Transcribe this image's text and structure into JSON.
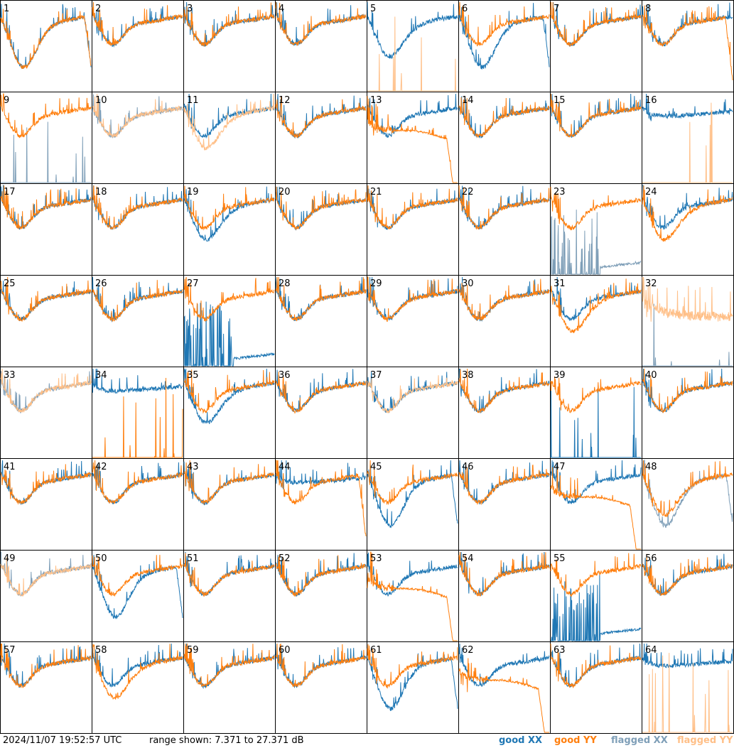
{
  "timestamp": "2024/11/07 19:52:57 UTC",
  "range_text": "range shown: 7.371 to 27.371 dB",
  "colors": {
    "good_xx": "#1f77b4",
    "good_yy": "#ff7f0e",
    "flagged_xx": "#7f9fb8",
    "flagged_yy": "#ffbf87"
  },
  "chart_data": {
    "type": "line",
    "grid": "8x8 small multiples",
    "ylim": [
      7.371,
      27.371
    ],
    "legend": [
      {
        "key": "good_xx",
        "label": "good XX"
      },
      {
        "key": "good_yy",
        "label": "good YY"
      },
      {
        "key": "flagged_xx",
        "label": "flagged XX"
      },
      {
        "key": "flagged_yy",
        "label": "flagged YY"
      }
    ],
    "panels": [
      {
        "label": "1",
        "xx": "good",
        "yy": "good",
        "xx_shape": "dip_deep",
        "yy_shape": "dip_deep"
      },
      {
        "label": "2",
        "xx": "good",
        "yy": "good",
        "xx_shape": "normal",
        "yy_shape": "normal"
      },
      {
        "label": "3",
        "xx": "good",
        "yy": "good",
        "xx_shape": "normal",
        "yy_shape": "normal"
      },
      {
        "label": "4",
        "xx": "good",
        "yy": "good",
        "xx_shape": "normal",
        "yy_shape": "normal"
      },
      {
        "label": "5",
        "xx": "good",
        "yy": "flagged",
        "xx_shape": "dip",
        "yy_shape": "spikes"
      },
      {
        "label": "6",
        "xx": "good",
        "yy": "good",
        "xx_shape": "dip_deep",
        "yy_shape": "normal"
      },
      {
        "label": "7",
        "xx": "good",
        "yy": "good",
        "xx_shape": "normal",
        "yy_shape": "normal"
      },
      {
        "label": "8",
        "xx": "good",
        "yy": "good",
        "xx_shape": "normal",
        "yy_shape": "dropoff"
      },
      {
        "label": "9",
        "xx": "flagged",
        "yy": "good",
        "xx_shape": "spikes",
        "yy_shape": "normal"
      },
      {
        "label": "10",
        "xx": "flagged",
        "yy": "flagged",
        "xx_shape": "normal",
        "yy_shape": "normal"
      },
      {
        "label": "11",
        "xx": "good",
        "yy": "flagged",
        "xx_shape": "normal",
        "yy_shape": "dip"
      },
      {
        "label": "12",
        "xx": "good",
        "yy": "good",
        "xx_shape": "normal",
        "yy_shape": "normal"
      },
      {
        "label": "13",
        "xx": "good",
        "yy": "good",
        "xx_shape": "normal",
        "yy_shape": "hump_drop"
      },
      {
        "label": "14",
        "xx": "good",
        "yy": "good",
        "xx_shape": "normal",
        "yy_shape": "normal"
      },
      {
        "label": "15",
        "xx": "good",
        "yy": "good",
        "xx_shape": "normal",
        "yy_shape": "normal"
      },
      {
        "label": "16",
        "xx": "good",
        "yy": "flagged",
        "xx_shape": "flatish",
        "yy_shape": "spikes"
      },
      {
        "label": "17",
        "xx": "good",
        "yy": "good",
        "xx_shape": "normal",
        "yy_shape": "normal"
      },
      {
        "label": "18",
        "xx": "good",
        "yy": "good",
        "xx_shape": "normal",
        "yy_shape": "normal"
      },
      {
        "label": "19",
        "xx": "good",
        "yy": "good",
        "xx_shape": "dip",
        "yy_shape": "normal"
      },
      {
        "label": "20",
        "xx": "good",
        "yy": "good",
        "xx_shape": "normal",
        "yy_shape": "normal"
      },
      {
        "label": "21",
        "xx": "good",
        "yy": "good",
        "xx_shape": "normal",
        "yy_shape": "normal"
      },
      {
        "label": "22",
        "xx": "good",
        "yy": "good",
        "xx_shape": "normal",
        "yy_shape": "normal"
      },
      {
        "label": "23",
        "xx": "flagged",
        "yy": "good",
        "xx_shape": "spikes_low",
        "yy_shape": "normal"
      },
      {
        "label": "24",
        "xx": "good",
        "yy": "good",
        "xx_shape": "normal",
        "yy_shape": "dip"
      },
      {
        "label": "25",
        "xx": "good",
        "yy": "good",
        "xx_shape": "normal",
        "yy_shape": "normal"
      },
      {
        "label": "26",
        "xx": "good",
        "yy": "good",
        "xx_shape": "normal",
        "yy_shape": "normal"
      },
      {
        "label": "27",
        "xx": "good",
        "yy": "good",
        "xx_shape": "spikes_low",
        "yy_shape": "normal"
      },
      {
        "label": "28",
        "xx": "good",
        "yy": "good",
        "xx_shape": "normal",
        "yy_shape": "normal"
      },
      {
        "label": "29",
        "xx": "good",
        "yy": "good",
        "xx_shape": "normal",
        "yy_shape": "normal"
      },
      {
        "label": "30",
        "xx": "good",
        "yy": "good",
        "xx_shape": "normal",
        "yy_shape": "normal"
      },
      {
        "label": "31",
        "xx": "good",
        "yy": "good",
        "xx_shape": "normal",
        "yy_shape": "dip"
      },
      {
        "label": "32",
        "xx": "flagged",
        "yy": "flagged",
        "xx_shape": "spikes",
        "yy_shape": "noisy"
      },
      {
        "label": "33",
        "xx": "flagged",
        "yy": "flagged",
        "xx_shape": "normal",
        "yy_shape": "normal"
      },
      {
        "label": "34",
        "xx": "good",
        "yy": "good",
        "xx_shape": "flatish",
        "yy_shape": "spikes"
      },
      {
        "label": "35",
        "xx": "good",
        "yy": "good",
        "xx_shape": "dip",
        "yy_shape": "normal"
      },
      {
        "label": "36",
        "xx": "good",
        "yy": "good",
        "xx_shape": "normal",
        "yy_shape": "normal"
      },
      {
        "label": "37",
        "xx": "good",
        "yy": "flagged",
        "xx_shape": "normal",
        "yy_shape": "normal"
      },
      {
        "label": "38",
        "xx": "good",
        "yy": "good",
        "xx_shape": "normal",
        "yy_shape": "normal"
      },
      {
        "label": "39",
        "xx": "good",
        "yy": "good",
        "xx_shape": "spikes",
        "yy_shape": "normal"
      },
      {
        "label": "40",
        "xx": "good",
        "yy": "good",
        "xx_shape": "normal",
        "yy_shape": "normal"
      },
      {
        "label": "41",
        "xx": "good",
        "yy": "good",
        "xx_shape": "normal",
        "yy_shape": "normal"
      },
      {
        "label": "42",
        "xx": "good",
        "yy": "good",
        "xx_shape": "normal",
        "yy_shape": "normal"
      },
      {
        "label": "43",
        "xx": "good",
        "yy": "good",
        "xx_shape": "normal",
        "yy_shape": "normal"
      },
      {
        "label": "44",
        "xx": "good",
        "yy": "good",
        "xx_shape": "flatish",
        "yy_shape": "dropoff"
      },
      {
        "label": "45",
        "xx": "good",
        "yy": "good",
        "xx_shape": "dip_deep",
        "yy_shape": "normal"
      },
      {
        "label": "46",
        "xx": "good",
        "yy": "good",
        "xx_shape": "normal",
        "yy_shape": "normal"
      },
      {
        "label": "47",
        "xx": "good",
        "yy": "good",
        "xx_shape": "normal",
        "yy_shape": "hump_drop"
      },
      {
        "label": "48",
        "xx": "flagged",
        "yy": "good",
        "xx_shape": "dip_deep",
        "yy_shape": "dip"
      },
      {
        "label": "49",
        "xx": "flagged",
        "yy": "flagged",
        "xx_shape": "normal",
        "yy_shape": "normal"
      },
      {
        "label": "50",
        "xx": "good",
        "yy": "good",
        "xx_shape": "dip_deep",
        "yy_shape": "normal"
      },
      {
        "label": "51",
        "xx": "good",
        "yy": "good",
        "xx_shape": "normal",
        "yy_shape": "normal"
      },
      {
        "label": "52",
        "xx": "good",
        "yy": "good",
        "xx_shape": "normal",
        "yy_shape": "normal"
      },
      {
        "label": "53",
        "xx": "good",
        "yy": "good",
        "xx_shape": "normal",
        "yy_shape": "hump_drop"
      },
      {
        "label": "54",
        "xx": "good",
        "yy": "good",
        "xx_shape": "normal",
        "yy_shape": "normal"
      },
      {
        "label": "55",
        "xx": "good",
        "yy": "good",
        "xx_shape": "spikes_low",
        "yy_shape": "normal"
      },
      {
        "label": "56",
        "xx": "good",
        "yy": "good",
        "xx_shape": "normal",
        "yy_shape": "normal"
      },
      {
        "label": "57",
        "xx": "good",
        "yy": "good",
        "xx_shape": "normal",
        "yy_shape": "normal"
      },
      {
        "label": "58",
        "xx": "good",
        "yy": "good",
        "xx_shape": "normal",
        "yy_shape": "dip"
      },
      {
        "label": "59",
        "xx": "good",
        "yy": "good",
        "xx_shape": "normal",
        "yy_shape": "normal"
      },
      {
        "label": "60",
        "xx": "good",
        "yy": "good",
        "xx_shape": "normal",
        "yy_shape": "normal"
      },
      {
        "label": "61",
        "xx": "good",
        "yy": "good",
        "xx_shape": "dip_deep",
        "yy_shape": "normal"
      },
      {
        "label": "62",
        "xx": "good",
        "yy": "good",
        "xx_shape": "normal",
        "yy_shape": "hump_drop"
      },
      {
        "label": "63",
        "xx": "good",
        "yy": "good",
        "xx_shape": "normal",
        "yy_shape": "normal"
      },
      {
        "label": "64",
        "xx": "good",
        "yy": "flagged",
        "xx_shape": "flatish",
        "yy_shape": "spikes"
      }
    ]
  }
}
